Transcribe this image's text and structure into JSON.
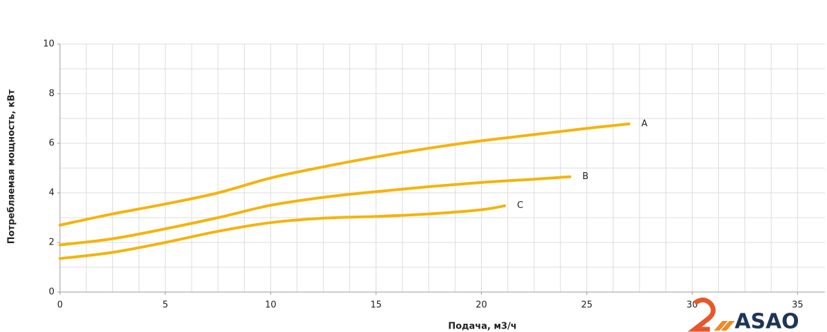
{
  "chart_data": {
    "type": "line",
    "x_label": "Подача, м3/ч",
    "y_label": "Потребляемая мощность, кВт",
    "xlim": [
      0,
      36.3
    ],
    "ylim": [
      0,
      10
    ],
    "xticks": [
      0,
      5,
      10,
      15,
      20,
      25,
      30,
      35
    ],
    "yticks": [
      0,
      2,
      4,
      6,
      8,
      10
    ],
    "grid": true,
    "grid_x": [
      1.25,
      2.5,
      3.75,
      5,
      6.25,
      7.5,
      8.75,
      10,
      11.25,
      12.5,
      13.75,
      15,
      16.25,
      17.5,
      18.75,
      20,
      21.25,
      22.5,
      23.75,
      25,
      26.25,
      27.5,
      28.75,
      30,
      31.25,
      32.5,
      33.75,
      35
    ],
    "grid_y": [
      1,
      2,
      3,
      4,
      5,
      6,
      7,
      8,
      9,
      10
    ],
    "series": [
      {
        "name": "A",
        "color": "#f5b30a",
        "x": [
          0,
          2.5,
          5,
          7.5,
          10,
          12.5,
          15,
          17.5,
          20,
          22.5,
          25,
          27
        ],
        "values": [
          2.7,
          3.15,
          3.55,
          4.0,
          4.6,
          5.05,
          5.45,
          5.8,
          6.1,
          6.35,
          6.6,
          6.78
        ]
      },
      {
        "name": "B",
        "color": "#f5b30a",
        "x": [
          0,
          2.5,
          5,
          7.5,
          10,
          12.5,
          15,
          17.5,
          20,
          22.5,
          24.2
        ],
        "values": [
          1.9,
          2.15,
          2.55,
          3.0,
          3.5,
          3.82,
          4.05,
          4.25,
          4.42,
          4.55,
          4.65
        ]
      },
      {
        "name": "C",
        "color": "#f5b30a",
        "x": [
          0,
          2.5,
          5,
          7.5,
          10,
          12.5,
          15,
          17.5,
          20,
          21.1
        ],
        "values": [
          1.35,
          1.6,
          2.0,
          2.45,
          2.8,
          2.98,
          3.05,
          3.15,
          3.32,
          3.48
        ]
      }
    ]
  },
  "logo_text": "ASAO"
}
